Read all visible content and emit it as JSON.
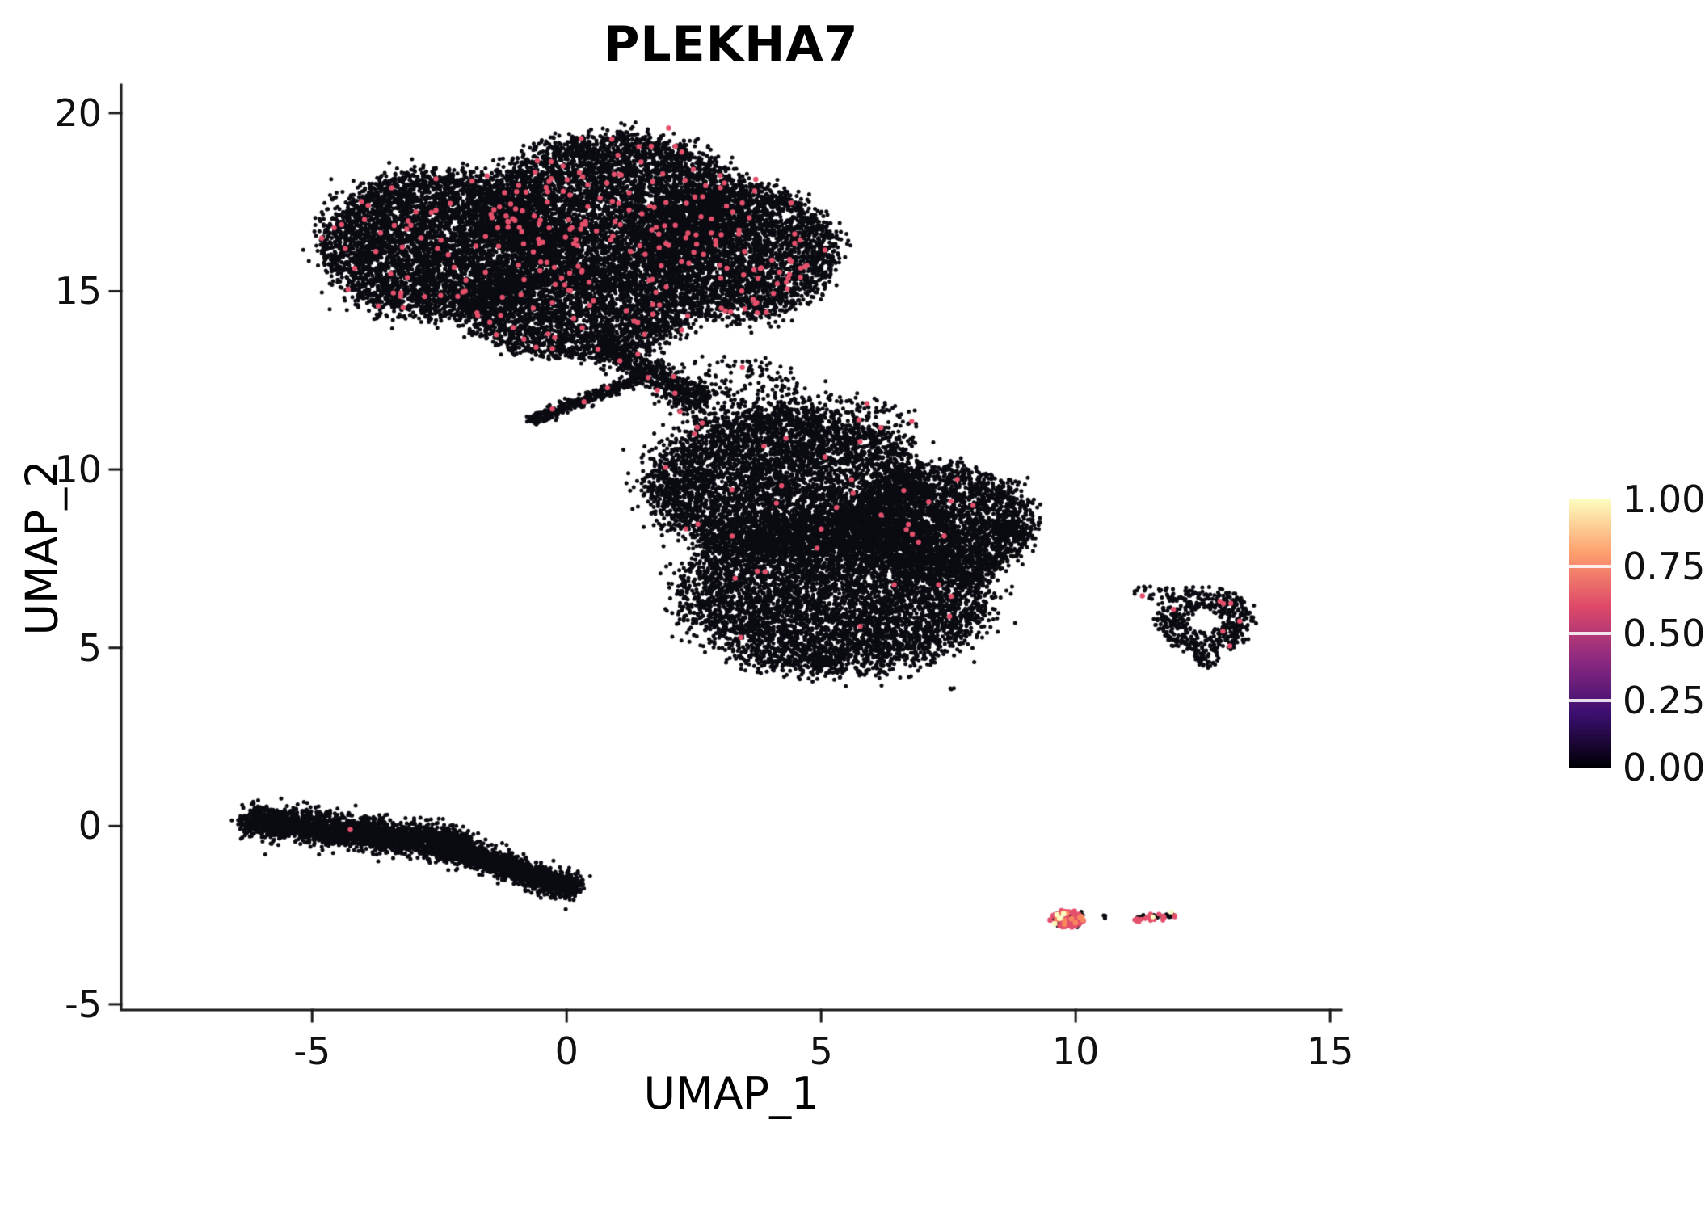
{
  "title": "PLEKHA7",
  "chart_data": {
    "type": "scatter",
    "title": "PLEKHA7",
    "xlabel": "UMAP_1",
    "ylabel": "UMAP_2",
    "xlim": [
      -8.75,
      15.22
    ],
    "ylim": [
      -5.16,
      20.79
    ],
    "x_ticks": [
      -5,
      0,
      5,
      10,
      15
    ],
    "x_tick_labels": [
      "-5",
      "0",
      "5",
      "10",
      "15"
    ],
    "y_ticks": [
      -5,
      0,
      5,
      10,
      15,
      20
    ],
    "y_tick_labels": [
      "-5",
      "0",
      "5",
      "10",
      "15",
      "20"
    ],
    "grid": false,
    "point_colors": {
      "zero": "#0b0b12",
      "expr": "#e4506c",
      "high": "#f8865f",
      "max": "#fbfcbf"
    },
    "legend": {
      "position": "right",
      "style": "colorbar",
      "tick_labels": [
        "1.00",
        "0.75",
        "0.50",
        "0.25",
        "0.00"
      ],
      "colormap": "magma",
      "stops_low_to_high": [
        "#000004",
        "#3b0f70",
        "#8c2981",
        "#de4968",
        "#fe9f6d",
        "#fcfdbf"
      ]
    },
    "clusters": [
      {
        "name": "top-left-lobe",
        "shape": "blob",
        "cx": -2.5,
        "cy": 16.3,
        "rx": 2.3,
        "ry": 2.05,
        "points": [
          {
            "n": 5200,
            "color": "zero"
          },
          {
            "n": 70,
            "color": "expr",
            "r": 3.2
          }
        ]
      },
      {
        "name": "top-upper-lobe",
        "shape": "blob",
        "cx": 1.0,
        "cy": 17.4,
        "rx": 2.45,
        "ry": 2.0,
        "points": [
          {
            "n": 4800,
            "color": "zero"
          },
          {
            "n": 95,
            "color": "expr",
            "r": 3.2
          }
        ]
      },
      {
        "name": "top-right-lobe",
        "shape": "blob",
        "cx": 3.4,
        "cy": 16.1,
        "rx": 1.9,
        "ry": 1.9,
        "points": [
          {
            "n": 3400,
            "color": "zero"
          },
          {
            "n": 60,
            "color": "expr",
            "r": 3.2
          }
        ]
      },
      {
        "name": "top-lower-lobe",
        "shape": "blob",
        "cx": 0.2,
        "cy": 14.4,
        "rx": 2.2,
        "ry": 1.25,
        "points": [
          {
            "n": 2600,
            "color": "zero"
          },
          {
            "n": 28,
            "color": "expr",
            "r": 3.2
          }
        ]
      },
      {
        "name": "top-halo",
        "shape": "blob",
        "cx": 0.3,
        "cy": 16.3,
        "rx": 3.3,
        "ry": 2.55,
        "points": [
          {
            "n": 800,
            "color": "zero"
          },
          {
            "n": 8,
            "color": "expr",
            "r": 3.2
          }
        ]
      },
      {
        "name": "top-tail-connector",
        "shape": "stripe",
        "x1": 0.7,
        "y1": 13.5,
        "x2": 2.7,
        "y2": 11.8,
        "w": 0.4,
        "points": [
          {
            "n": 650,
            "color": "zero"
          },
          {
            "n": 6,
            "color": "expr",
            "r": 3.2
          }
        ]
      },
      {
        "name": "thin-diagonal-wisp",
        "shape": "stripe",
        "x1": -0.7,
        "y1": 11.35,
        "x2": 1.5,
        "y2": 12.6,
        "w": 0.17,
        "points": [
          {
            "n": 420,
            "color": "zero"
          },
          {
            "n": 3,
            "color": "expr",
            "r": 3.2
          }
        ]
      },
      {
        "name": "connector-scatter",
        "shape": "blob",
        "cx": 3.3,
        "cy": 12.1,
        "rx": 1.4,
        "ry": 1.05,
        "points": [
          {
            "n": 240,
            "color": "zero"
          },
          {
            "n": 3,
            "color": "expr",
            "r": 3.2
          }
        ]
      },
      {
        "name": "mid-upper-lobe",
        "shape": "blob",
        "cx": 4.3,
        "cy": 9.6,
        "rx": 2.7,
        "ry": 2.1,
        "points": [
          {
            "n": 5200,
            "color": "zero"
          },
          {
            "n": 16,
            "color": "expr",
            "r": 3.2
          }
        ]
      },
      {
        "name": "mid-lower-lobe",
        "shape": "blob",
        "cx": 5.3,
        "cy": 6.6,
        "rx": 3.0,
        "ry": 2.3,
        "points": [
          {
            "n": 6500,
            "color": "zero"
          },
          {
            "n": 14,
            "color": "expr",
            "r": 3.2
          }
        ]
      },
      {
        "name": "mid-right-lobe",
        "shape": "blob",
        "cx": 7.4,
        "cy": 8.5,
        "rx": 1.75,
        "ry": 1.6,
        "points": [
          {
            "n": 2600,
            "color": "zero"
          },
          {
            "n": 8,
            "color": "expr",
            "r": 3.2
          }
        ]
      },
      {
        "name": "mid-right-hook",
        "shape": "stripe",
        "x1": 8.4,
        "y1": 8.45,
        "x2": 9.0,
        "y2": 8.1,
        "w": 0.16,
        "points": [
          {
            "n": 160,
            "color": "zero"
          }
        ]
      },
      {
        "name": "mid-top-scatter",
        "shape": "blob",
        "cx": 5.0,
        "cy": 11.2,
        "rx": 1.9,
        "ry": 0.95,
        "points": [
          {
            "n": 280,
            "color": "zero"
          },
          {
            "n": 4,
            "color": "expr",
            "r": 3.2
          }
        ]
      },
      {
        "name": "mid-outlier",
        "shape": "blob",
        "cx": 7.6,
        "cy": 3.8,
        "rx": 0.1,
        "ry": 0.08,
        "points": [
          {
            "n": 3,
            "color": "zero"
          }
        ]
      },
      {
        "name": "bottom-left-stripe-a",
        "shape": "stripe",
        "x1": -6.3,
        "y1": 0.2,
        "x2": -2.0,
        "y2": -0.55,
        "w": 0.42,
        "points": [
          {
            "n": 2700,
            "color": "zero"
          }
        ]
      },
      {
        "name": "bottom-left-stripe-b",
        "shape": "stripe",
        "x1": -2.6,
        "y1": -0.45,
        "x2": 0.2,
        "y2": -1.8,
        "w": 0.34,
        "points": [
          {
            "n": 1900,
            "color": "zero"
          }
        ]
      },
      {
        "name": "right-donut",
        "shape": "ring",
        "cx": 12.55,
        "cy": 5.75,
        "r_in": 0.3,
        "r_out": 0.95,
        "points": [
          {
            "n": 520,
            "color": "zero"
          },
          {
            "n": 7,
            "color": "expr",
            "r": 3.2
          }
        ]
      },
      {
        "name": "donut-left-scatter",
        "shape": "blob",
        "cx": 11.55,
        "cy": 6.55,
        "rx": 0.4,
        "ry": 0.28,
        "points": [
          {
            "n": 22,
            "color": "zero"
          },
          {
            "n": 1,
            "color": "expr",
            "r": 3.2
          }
        ]
      },
      {
        "name": "donut-below-scatter",
        "shape": "blob",
        "cx": 12.6,
        "cy": 4.62,
        "rx": 0.28,
        "ry": 0.2,
        "points": [
          {
            "n": 26,
            "color": "zero"
          }
        ]
      },
      {
        "name": "bottom-right-hot-blob",
        "shape": "blob",
        "cx": 9.85,
        "cy": -2.62,
        "rx": 0.33,
        "ry": 0.27,
        "points": [
          {
            "n": 26,
            "color": "zero"
          },
          {
            "n": 46,
            "color": "expr",
            "r": 3.4
          },
          {
            "n": 10,
            "color": "high",
            "r": 3.4
          },
          {
            "n": 4,
            "color": "max",
            "r": 3.4
          }
        ]
      },
      {
        "name": "bottom-right-dot",
        "shape": "blob",
        "cx": 10.55,
        "cy": -2.55,
        "rx": 0.08,
        "ry": 0.06,
        "points": [
          {
            "n": 4,
            "color": "zero"
          }
        ]
      },
      {
        "name": "bottom-right-streak",
        "shape": "stripe",
        "x1": 11.15,
        "y1": -2.62,
        "x2": 11.95,
        "y2": -2.5,
        "w": 0.09,
        "points": [
          {
            "n": 36,
            "color": "zero"
          },
          {
            "n": 20,
            "color": "expr",
            "r": 3.0
          },
          {
            "n": 2,
            "color": "max",
            "r": 3.0
          }
        ]
      }
    ],
    "extra_points": [
      {
        "x": -4.25,
        "y": -0.1,
        "color": "expr",
        "r": 3.2
      }
    ]
  }
}
